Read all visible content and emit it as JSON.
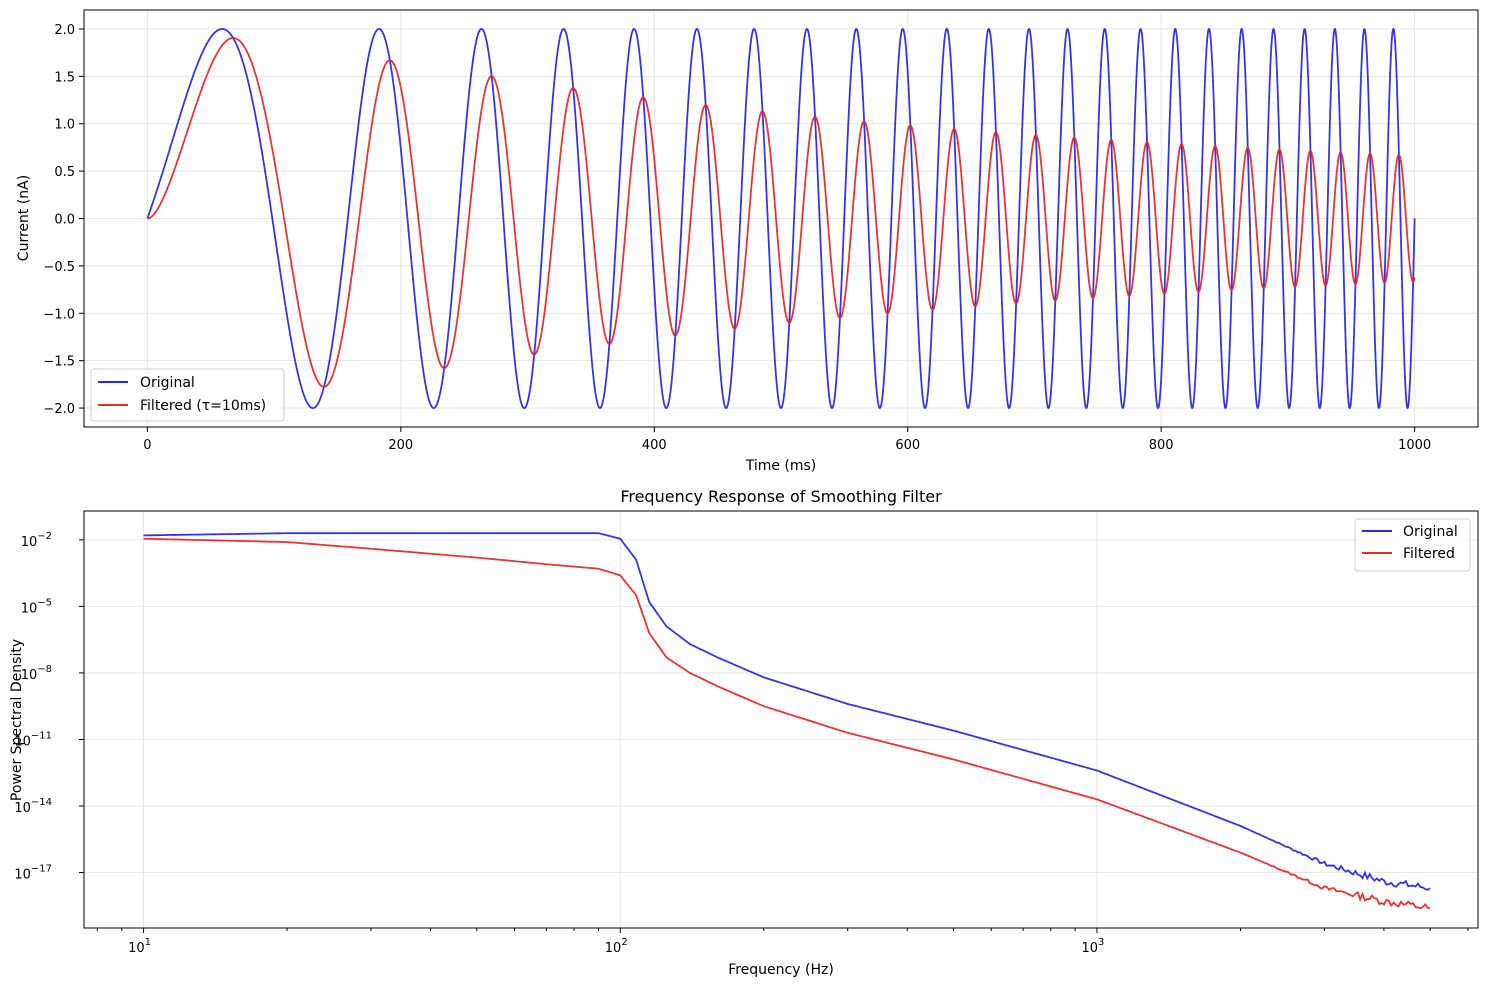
{
  "chart_data": [
    {
      "type": "line",
      "title": "",
      "xlabel": "Time (ms)",
      "ylabel": "Current (nA)",
      "xlim": [
        -50,
        1050
      ],
      "ylim": [
        -2.2,
        2.2
      ],
      "x_ticks": [
        0,
        200,
        400,
        600,
        800,
        1000
      ],
      "x_tick_labels": [
        "0",
        "200",
        "400",
        "600",
        "800",
        "1000"
      ],
      "y_ticks": [
        2.0,
        1.5,
        1.0,
        0.5,
        0.0,
        -0.5,
        -1.0,
        -1.5,
        -2.0
      ],
      "y_tick_labels": [
        "2.0",
        "1.5",
        "1.0",
        "0.5",
        "0.0",
        "−0.5",
        "−1.0",
        "−1.5",
        "−2.0"
      ],
      "signal": {
        "description_kind": "chirp",
        "amplitude": 2.0,
        "f_start_hz": 3,
        "f_end_hz": 45,
        "duration_ms": 1000,
        "tau_ms": 10
      },
      "series": [
        {
          "name": "Original",
          "color": "#2a2ae6"
        },
        {
          "name": "Filtered (τ=10ms)",
          "color": "#e62a2a"
        }
      ],
      "legend_position": "lower left",
      "grid": true
    },
    {
      "type": "line",
      "title": "Frequency Response of Smoothing Filter",
      "xlabel": "Frequency (Hz)",
      "ylabel": "Power Spectral Density",
      "x_scale": "log",
      "y_scale": "log",
      "xlim": [
        7.5,
        6300
      ],
      "ylim_log10": [
        -19.5,
        -0.7
      ],
      "x_ticks": [
        10,
        100,
        1000
      ],
      "x_tick_labels": [
        [
          "10",
          "1"
        ],
        [
          "10",
          "2"
        ],
        [
          "10",
          "3"
        ]
      ],
      "y_ticks": [
        -2,
        -5,
        -8,
        -11,
        -14,
        -17
      ],
      "y_tick_labels": [
        [
          "10",
          "−2"
        ],
        [
          "10",
          "−5"
        ],
        [
          "10",
          "−8"
        ],
        [
          "10",
          "−11"
        ],
        [
          "10",
          "−14"
        ],
        [
          "10",
          "−17"
        ]
      ],
      "series": [
        {
          "name": "Original",
          "color": "#2a2ae6",
          "x": [
            10,
            20,
            30,
            50,
            70,
            90,
            100,
            108,
            115,
            125,
            140,
            160,
            200,
            300,
            500,
            1000,
            2000,
            3000,
            4000,
            5000
          ],
          "log10_y": [
            -1.8,
            -1.7,
            -1.7,
            -1.7,
            -1.7,
            -1.7,
            -1.95,
            -2.9,
            -4.8,
            -5.9,
            -6.7,
            -7.3,
            -8.2,
            -9.4,
            -10.6,
            -12.4,
            -14.9,
            -16.6,
            -17.4,
            -17.7
          ]
        },
        {
          "name": "Filtered",
          "color": "#e62a2a",
          "x": [
            10,
            20,
            30,
            50,
            70,
            90,
            100,
            108,
            115,
            125,
            140,
            160,
            200,
            300,
            500,
            1000,
            2000,
            3000,
            4000,
            5000
          ],
          "log10_y": [
            -1.95,
            -2.1,
            -2.4,
            -2.8,
            -3.1,
            -3.3,
            -3.6,
            -4.5,
            -6.2,
            -7.3,
            -8.0,
            -8.6,
            -9.5,
            -10.7,
            -11.9,
            -13.7,
            -16.1,
            -17.7,
            -18.3,
            -18.6
          ]
        }
      ],
      "legend_position": "upper right",
      "grid": true
    }
  ]
}
